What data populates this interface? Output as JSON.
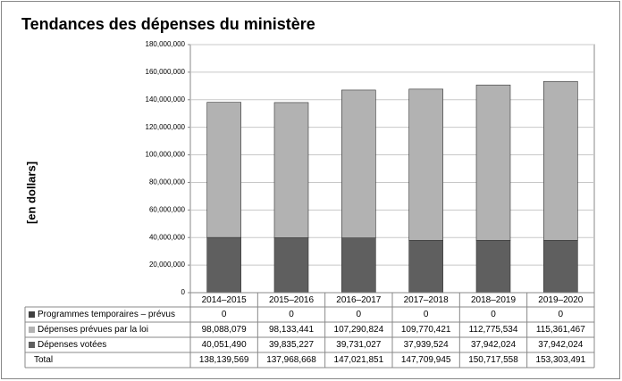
{
  "chart_data": {
    "type": "bar",
    "stacked": true,
    "title": "Tendances des dépenses du ministère",
    "y_label": "[en dollars]",
    "categories": [
      "2014–2015",
      "2015–2016",
      "2016–2017",
      "2017–2018",
      "2018–2019",
      "2019–2020"
    ],
    "series": [
      {
        "name": "Programmes temporaires – prévus",
        "color": "#404040",
        "values": [
          0,
          0,
          0,
          0,
          0,
          0
        ],
        "value_labels": [
          "0",
          "0",
          "0",
          "0",
          "0",
          "0"
        ]
      },
      {
        "name": "Dépenses prévues par la loi",
        "color": "#b2b2b2",
        "values": [
          98088079,
          98133441,
          107290824,
          109770421,
          112775534,
          115361467
        ],
        "value_labels": [
          "98,088,079",
          "98,133,441",
          "107,290,824",
          "109,770,421",
          "112,775,534",
          "115,361,467"
        ]
      },
      {
        "name": "Dépenses votées",
        "color": "#5f5f5f",
        "values": [
          40051490,
          39835227,
          39731027,
          37939524,
          37942024,
          37942024
        ],
        "value_labels": [
          "40,051,490",
          "39,835,227",
          "39,731,027",
          "37,939,524",
          "37,942,024",
          "37,942,024"
        ]
      }
    ],
    "total": {
      "name": "Total",
      "values": [
        138139569,
        137968668,
        147021851,
        147709945,
        150717558,
        153303491
      ],
      "value_labels": [
        "138,139,569",
        "137,968,668",
        "147,021,851",
        "147,709,945",
        "150,717,558",
        "153,303,491"
      ]
    },
    "ylim": [
      0,
      180000000
    ],
    "yticks": [
      0,
      {
        "value": 20000000,
        "label": "20,000,000"
      },
      {
        "value": 40000000,
        "label": "40,000,000"
      },
      {
        "value": 60000000,
        "label": "60,000,000"
      },
      {
        "value": 80000000,
        "label": "80,000,000"
      },
      {
        "value": 100000000,
        "label": "100,000,000"
      },
      {
        "value": 120000000,
        "label": "120,000,000"
      },
      {
        "value": 140000000,
        "label": "140,000,000"
      },
      {
        "value": 160000000,
        "label": "160,000,000"
      },
      {
        "value": 180000000,
        "label": "180,000,000"
      }
    ],
    "grid": true
  }
}
